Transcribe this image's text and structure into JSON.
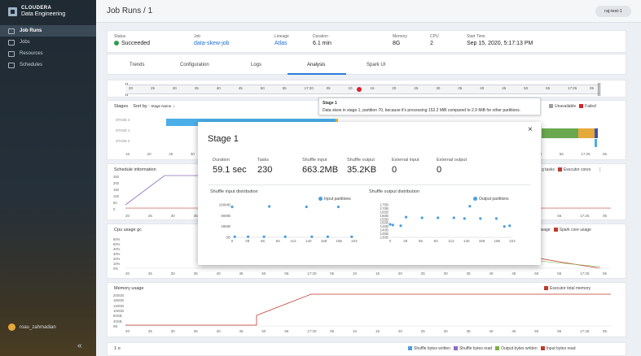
{
  "brand": {
    "line1": "CLOUDERA",
    "line2": "Data Engineering"
  },
  "nav": [
    {
      "label": "Job Runs",
      "active": true
    },
    {
      "label": "Jobs"
    },
    {
      "label": "Resources"
    },
    {
      "label": "Schedules"
    }
  ],
  "user": "roau_zahmadian",
  "collapse_icon": "«",
  "header": {
    "title": "Job Runs / 1",
    "env": "raj-test-1"
  },
  "summary": {
    "status_label": "Status",
    "status": "Succeeded",
    "job_label": "Job",
    "job": "data-skew-job",
    "lineage_label": "Lineage",
    "lineage": "Atlas",
    "duration_label": "Duration",
    "duration": "6.1 min",
    "memory_label": "Memory",
    "memory": "8G",
    "cpu_label": "CPU",
    "cpu": "2",
    "start_label": "Start Time",
    "start": "Sep 15, 2020, 5:17:13 PM"
  },
  "tabs": [
    "Trends",
    "Configuration",
    "Logs",
    "Analysis",
    "Spark UI"
  ],
  "timeline": {
    "ticks": [
      "20",
      "25",
      "30",
      "35",
      "40",
      "45",
      "50",
      "55",
      "17:20",
      "05",
      "10",
      "15",
      "20",
      "25",
      "30",
      "35",
      "40",
      "45",
      "50",
      "55",
      "17:25",
      "05"
    ]
  },
  "tooltip": {
    "title": "Stage 1",
    "text": "Data skew in stage 1, partition 70, because it's processing 152.2 MiB compared to 2.9 MiB for other partitions."
  },
  "stages": {
    "title": "Stages",
    "sort_label": "Sort by :",
    "sort_value": "Stage Name",
    "sort_icon": "arrow-down-icon",
    "rows": [
      "STAGE 3",
      "STAGE 1",
      "STAGE 2"
    ],
    "legend": [
      {
        "label": "Unavailable",
        "color": "#9e9e9e"
      },
      {
        "label": "Failed",
        "color": "#d9222a"
      }
    ],
    "xticks": [
      "15",
      "20",
      "25",
      "30",
      "35",
      "40",
      "45",
      "50",
      "55",
      "17:20",
      "05",
      "10",
      "15",
      "20",
      "25",
      "30",
      "35",
      "40",
      "45",
      "50",
      "55",
      "17:25",
      "05"
    ]
  },
  "schedule": {
    "title": "Schedule information",
    "legend": [
      {
        "label": "g tasks",
        "color": "#9e9e9e"
      },
      {
        "label": "Executor cores",
        "color": "#c0392b"
      }
    ],
    "yticks": [
      "250",
      "200",
      "150",
      "100",
      "50",
      "0"
    ],
    "xticks": [
      "20",
      "25",
      "30",
      "35",
      "40",
      "45",
      "50",
      "55",
      "17:20",
      "05",
      "10",
      "15",
      "20",
      "25",
      "30",
      "35",
      "40",
      "45",
      "50",
      "55",
      "17:25",
      "05"
    ]
  },
  "cpu": {
    "title": "Cpu usage gc",
    "legend": [
      {
        "label": "usage",
        "color": "#9e9e9e"
      },
      {
        "label": "Spark core usage",
        "color": "#c0392b"
      }
    ],
    "yticks": [
      "60%",
      "50%",
      "40%",
      "30%",
      "20%",
      "10%",
      "0%"
    ],
    "xticks": [
      "20",
      "25",
      "30",
      "35",
      "40",
      "45",
      "50",
      "55",
      "17:20",
      "05",
      "10",
      "15",
      "20",
      "25",
      "30",
      "35",
      "40",
      "45",
      "50",
      "55",
      "17:25",
      "05"
    ]
  },
  "memory": {
    "title": "Memory usage",
    "legend": [
      {
        "label": "Executor total memory",
        "color": "#c0392b"
      }
    ],
    "yticks": [
      "200GB",
      "160GB",
      "140GB",
      "100GB",
      "60GB",
      "40GB",
      "0B"
    ],
    "xticks": [
      "20",
      "25",
      "30",
      "35",
      "40",
      "45",
      "50",
      "55",
      "17:20",
      "05",
      "10",
      "15",
      "20",
      "25",
      "30",
      "35",
      "40",
      "45",
      "50",
      "55",
      "17:25",
      "05"
    ]
  },
  "io": {
    "title": "1 o",
    "legend": [
      {
        "label": "Shuffle bytes written",
        "color": "#4a9fe0"
      },
      {
        "label": "Shuffle bytes read",
        "color": "#8e6bbf"
      },
      {
        "label": "Output bytes written",
        "color": "#7cb342"
      },
      {
        "label": "Input bytes read",
        "color": "#c0392b"
      }
    ]
  },
  "modal": {
    "title": "Stage 1",
    "close_icon": "×",
    "stats": [
      {
        "label": "Duration",
        "value": "59.1 sec"
      },
      {
        "label": "Tasks",
        "value": "230"
      },
      {
        "label": "Shuffle input",
        "value": "663.2MB"
      },
      {
        "label": "Shuffle output",
        "value": "35.2KB"
      },
      {
        "label": "External input",
        "value": "0"
      },
      {
        "label": "External output",
        "value": "0"
      }
    ],
    "shuffle_input": {
      "title": "Shuffle input distribution",
      "legend": "Input partitions",
      "yticks": [
        "160MB",
        "80MB",
        "48MB",
        "0B"
      ],
      "xticks": [
        "0",
        "28",
        "56",
        "84",
        "112",
        "140",
        "168",
        "196",
        "224"
      ]
    },
    "shuffle_output": {
      "title": "Shuffle output distribution",
      "legend": "Output partitions",
      "yticks": [
        "175B",
        "170B",
        "165B",
        "160B",
        "155B",
        "150B",
        "145B",
        "140B",
        "135B",
        "130B"
      ],
      "xticks": [
        "0",
        "28",
        "56",
        "84",
        "112",
        "140",
        "168",
        "196",
        "224"
      ]
    }
  },
  "chart_data": [
    {
      "type": "scatter",
      "title": "Shuffle input distribution",
      "series": [
        {
          "name": "Input partitions",
          "points": [
            [
              0,
              150
            ],
            [
              70,
              152
            ],
            [
              140,
              150
            ],
            [
              200,
              150
            ],
            [
              5,
              3
            ],
            [
              30,
              3
            ],
            [
              60,
              3
            ],
            [
              100,
              3
            ],
            [
              150,
              3
            ],
            [
              180,
              3
            ],
            [
              225,
              3
            ]
          ]
        }
      ],
      "xlim": [
        0,
        230
      ],
      "ylim": [
        0,
        160
      ]
    },
    {
      "type": "scatter",
      "title": "Shuffle output distribution",
      "series": [
        {
          "name": "Output partitions",
          "points": [
            [
              0,
              148
            ],
            [
              5,
              147
            ],
            [
              20,
              146
            ],
            [
              30,
              158
            ],
            [
              60,
              157
            ],
            [
              90,
              157
            ],
            [
              120,
              157
            ],
            [
              140,
              156
            ],
            [
              150,
              173
            ],
            [
              170,
              156
            ],
            [
              200,
              156
            ],
            [
              215,
              145
            ],
            [
              225,
              146
            ]
          ]
        }
      ],
      "xlim": [
        0,
        230
      ],
      "ylim": [
        130,
        175
      ]
    }
  ]
}
